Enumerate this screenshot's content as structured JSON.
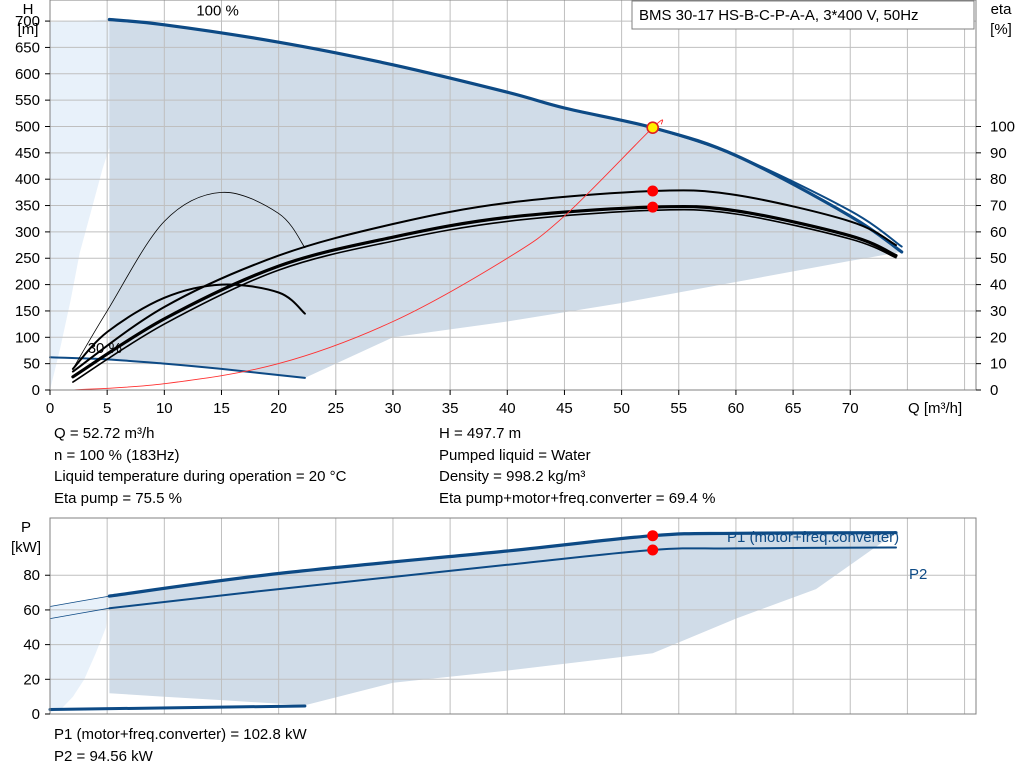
{
  "chart_data": [
    {
      "type": "line",
      "title": "BMS 30-17 HS-B-C-P-A-A, 3*400 V, 50Hz",
      "xlabel": "Q [m³/h]",
      "ylabel_lines": [
        "H",
        "[m]"
      ],
      "y2label_lines": [
        "eta",
        "[%]"
      ],
      "xlim": [
        0,
        81
      ],
      "ylim": [
        0,
        740
      ],
      "y2lim": [
        0,
        148
      ],
      "xticks": [
        0,
        5,
        10,
        15,
        20,
        25,
        30,
        35,
        40,
        45,
        50,
        55,
        60,
        65,
        70
      ],
      "yticks": [
        0,
        50,
        100,
        150,
        200,
        250,
        300,
        350,
        400,
        450,
        500,
        550,
        600,
        650,
        700
      ],
      "y2ticks": [
        0,
        10,
        20,
        30,
        40,
        50,
        60,
        70,
        80,
        90,
        100
      ],
      "grid": true,
      "annotations": [
        {
          "text": "100 %",
          "x": 12.8,
          "y": 720
        },
        {
          "text": "30 %",
          "x": 3.3,
          "y": 80
        }
      ],
      "series": [
        {
          "id": "h100",
          "color": "#0d4a85",
          "width": 3.2,
          "x": [
            5.2,
            10,
            20,
            30,
            40,
            45,
            52.72,
            60,
            70,
            74.5
          ],
          "y": [
            703,
            693,
            660,
            617,
            565,
            535,
            497.7,
            445,
            330,
            262
          ]
        },
        {
          "id": "h30",
          "color": "#0d4a85",
          "width": 2,
          "x": [
            0,
            5,
            10,
            15,
            22.3
          ],
          "y": [
            62,
            58,
            50,
            40,
            23
          ]
        },
        {
          "id": "h100_upper",
          "color": "#0d4a85",
          "width": 2,
          "x": [
            52.72,
            60,
            70,
            74.5
          ],
          "y": [
            497.7,
            445,
            340,
            272
          ]
        },
        {
          "id": "eta_pump",
          "color": "#000000",
          "width": 2,
          "axis": "y2",
          "x": [
            2,
            10,
            20,
            30,
            40,
            52.72,
            60,
            70,
            74
          ],
          "y": [
            7,
            31.5,
            51,
            63,
            71,
            75.5,
            74,
            64,
            55
          ]
        },
        {
          "id": "eta_total",
          "color": "#000000",
          "width": 3.2,
          "axis": "y2",
          "x": [
            2,
            10,
            20,
            30,
            40,
            52.72,
            60,
            70,
            74
          ],
          "y": [
            5,
            27,
            47,
            58,
            65.5,
            69.4,
            68,
            58.5,
            51
          ]
        },
        {
          "id": "eta_total_inner",
          "color": "#000000",
          "width": 1.6,
          "axis": "y2",
          "x": [
            2,
            10,
            20,
            30,
            40,
            52.72,
            60,
            70,
            74
          ],
          "y": [
            3,
            25,
            45.5,
            56.5,
            64,
            68.2,
            66.8,
            57.3,
            50.2
          ]
        },
        {
          "id": "eta_small_thin",
          "color": "#000000",
          "width": 0.8,
          "axis": "y2",
          "x": [
            2,
            5,
            10,
            15,
            20,
            22.3
          ],
          "y": [
            8,
            30,
            64,
            75,
            67,
            54
          ]
        },
        {
          "id": "eta_small_pump",
          "color": "#000000",
          "width": 2,
          "axis": "y2",
          "x": [
            2,
            5,
            10,
            15,
            20,
            22.3
          ],
          "y": [
            8,
            22,
            35,
            40,
            37,
            29
          ]
        },
        {
          "id": "npsh",
          "color": "#ff3030",
          "width": 0.9,
          "x": [
            2,
            10,
            20,
            30,
            40,
            45,
            52.72,
            53.5
          ],
          "y": [
            0,
            12,
            50,
            130,
            250,
            330,
            497.7,
            505
          ]
        }
      ],
      "operating_points": [
        {
          "x": 52.72,
          "y": 497.7,
          "color": "#ffee00",
          "edge": "#e02020"
        },
        {
          "x": 52.72,
          "y": 75.5,
          "axis": "y2",
          "color": "#ff0000"
        },
        {
          "x": 52.72,
          "y": 69.4,
          "axis": "y2",
          "color": "#ff0000"
        }
      ],
      "region_100": {
        "x": [
          5.2,
          10,
          20,
          30,
          40,
          52.72,
          60,
          70,
          74.5,
          70,
          60,
          50,
          40,
          30,
          22.3,
          15,
          10,
          5.2
        ],
        "y": [
          703,
          693,
          660,
          617,
          565,
          497.7,
          445,
          330,
          262,
          245,
          205,
          165,
          130,
          100,
          23,
          42,
          51,
          58
        ]
      },
      "region_low": {
        "x": [
          0,
          5.2,
          5.8,
          4.6,
          3.6,
          2.6,
          1.8,
          0.9,
          0
        ],
        "y": [
          698,
          703,
          500,
          420,
          340,
          260,
          170,
          80,
          0
        ]
      }
    },
    {
      "type": "line",
      "ylabel_lines": [
        "P",
        "[kW]"
      ],
      "xlim": [
        0,
        81
      ],
      "ylim": [
        0,
        113
      ],
      "yticks": [
        0,
        20,
        40,
        60,
        80
      ],
      "grid": true,
      "series": [
        {
          "id": "p1",
          "name": "P1 (motor+freq.converter)",
          "color": "#0d4a85",
          "width": 3.2,
          "x": [
            5.2,
            20,
            40,
            52.72,
            60,
            74
          ],
          "y": [
            68,
            81,
            94,
            102.8,
            104.2,
            104.5
          ]
        },
        {
          "id": "p2",
          "name": "P2",
          "color": "#0d4a85",
          "width": 2,
          "x": [
            5.2,
            20,
            40,
            52.72,
            60,
            74
          ],
          "y": [
            61,
            72,
            86,
            94.56,
            95.5,
            96
          ]
        },
        {
          "id": "p1_low_lo",
          "color": "#0d4a85",
          "width": 3,
          "x": [
            0,
            22.3
          ],
          "y": [
            2.6,
            4.6
          ]
        },
        {
          "id": "p1_thin",
          "color": "#0d4a85",
          "width": 0.8,
          "x": [
            0,
            5.2
          ],
          "y": [
            62,
            68
          ]
        },
        {
          "id": "p2_thin",
          "color": "#0d4a85",
          "width": 0.8,
          "x": [
            0,
            5.2
          ],
          "y": [
            55,
            61
          ]
        }
      ],
      "operating_points": [
        {
          "x": 52.72,
          "y": 102.8,
          "color": "#ff0000"
        },
        {
          "x": 52.72,
          "y": 94.56,
          "color": "#ff0000"
        }
      ],
      "region_100": {
        "x": [
          5.2,
          20,
          40,
          52.72,
          60,
          74,
          67,
          60,
          52.72,
          40,
          30,
          22.3,
          15,
          10,
          5.2
        ],
        "y": [
          68,
          81,
          94,
          102.8,
          104.2,
          104.5,
          72,
          55,
          35,
          25,
          18,
          5,
          8,
          10,
          12
        ]
      },
      "region_low": {
        "x": [
          0,
          5.2,
          4.9,
          4,
          3,
          2,
          1,
          0
        ],
        "y": [
          62,
          68,
          50,
          35,
          20,
          10,
          3,
          1
        ]
      }
    }
  ],
  "op_info": {
    "left": [
      "Q = 52.72 m³/h",
      "n = 100 % (183Hz)",
      "Liquid temperature during operation = 20 °C",
      "Eta pump = 75.5 %"
    ],
    "right": [
      "H = 497.7 m",
      "Pumped liquid = Water",
      "Density = 998.2 kg/m³",
      "Eta pump+motor+freq.converter = 69.4 %"
    ]
  },
  "power_info": [
    "P1 (motor+freq.converter) = 102.8 kW",
    "P2 = 94.56 kW"
  ],
  "colors": {
    "region": "#d0dce8",
    "region_low": "#e8f1fa",
    "grid": "#bfbfbf",
    "curve": "#0d4a85"
  }
}
